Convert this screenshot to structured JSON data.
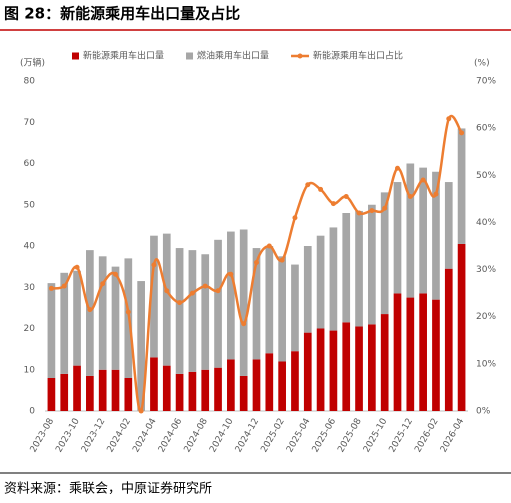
{
  "chart_data": {
    "type": "bar",
    "title": "图 28：新能源乘用车出口量及占比",
    "source": "资料来源：乘联会，中原证券研究所",
    "y_unit": "(万辆)",
    "y2_unit": "(%)",
    "stacked": true,
    "categories": [
      "2023-08",
      null,
      "2023-10",
      null,
      "2023-12",
      null,
      "2024-02",
      null,
      "2024-04",
      null,
      "2024-06",
      null,
      "2024-08",
      null,
      "2024-10",
      null,
      "2024-12",
      null,
      "2025-02",
      null,
      "2025-04",
      null,
      "2025-06",
      null,
      "2025-08",
      null,
      "2025-10",
      null,
      "2025-12",
      null,
      "2026-02",
      null,
      "2026-04"
    ],
    "series": [
      {
        "name": "新能源乘用车出口量",
        "color": "#c00000",
        "type": "bar",
        "values": [
          8,
          9,
          11,
          8.5,
          10,
          10,
          8,
          0,
          13,
          11,
          9,
          9.5,
          10,
          10.5,
          12.5,
          8.5,
          12.5,
          14,
          12,
          14.5,
          19,
          20,
          19.5,
          21.5,
          20.5,
          21,
          23.5,
          28.5,
          27.5,
          28.5,
          27,
          34.5,
          40.5
        ]
      },
      {
        "name": "燃油乘用车出口量",
        "color": "#a6a6a6",
        "type": "bar",
        "values": [
          23,
          24.5,
          23,
          30.5,
          27.5,
          25,
          29,
          31.5,
          29.5,
          32,
          30.5,
          29.5,
          28,
          31,
          31,
          35.5,
          27,
          26,
          25.5,
          21,
          21,
          22.5,
          25,
          26.5,
          28,
          29,
          29.5,
          27,
          32.5,
          30.5,
          31,
          21,
          28
        ]
      },
      {
        "name": "新能源乘用车出口占比",
        "color": "#ed7d31",
        "type": "line",
        "axis": "y2",
        "values": [
          26,
          26.5,
          30.5,
          21.5,
          27,
          29,
          21,
          0,
          31,
          25.5,
          23,
          25,
          26.5,
          25.5,
          29,
          18.5,
          31.5,
          35,
          32,
          41,
          48,
          47,
          44,
          45.5,
          42,
          42.5,
          43,
          51.5,
          45.5,
          49,
          46,
          62,
          59
        ]
      }
    ],
    "ylim": [
      0,
      80
    ],
    "yticks": [
      0,
      10,
      20,
      30,
      40,
      50,
      60,
      70,
      80
    ],
    "y2lim": [
      0,
      70
    ],
    "y2ticks": [
      {
        "value": 0,
        "label": "0%"
      },
      {
        "value": 10,
        "label": "10%"
      },
      {
        "value": 20,
        "label": "20%"
      },
      {
        "value": 30,
        "label": "30%"
      },
      {
        "value": 40,
        "label": "40%"
      },
      {
        "value": 50,
        "label": "50%"
      },
      {
        "value": 60,
        "label": "60%"
      },
      {
        "value": 70,
        "label": "70%"
      }
    ],
    "legend": "top"
  }
}
